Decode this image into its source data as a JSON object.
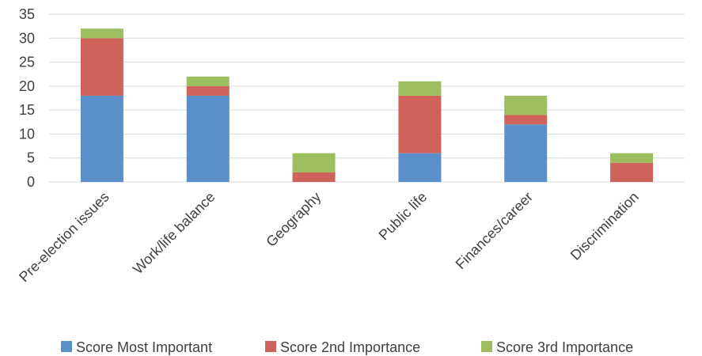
{
  "chart_data": {
    "type": "bar",
    "stacked": true,
    "categories": [
      "Pre-election issues",
      "Work/life balance",
      "Geography",
      "Public life",
      "Finances/career",
      "Discrimination"
    ],
    "series": [
      {
        "name": "Score Most Important",
        "color": "#5b8fca",
        "values": [
          18,
          18,
          0,
          6,
          12,
          0
        ]
      },
      {
        "name": "Score 2nd Importance",
        "color": "#d0625c",
        "values": [
          12,
          2,
          2,
          12,
          2,
          4
        ]
      },
      {
        "name": "Score 3rd Importance",
        "color": "#9dbe5e",
        "values": [
          2,
          2,
          4,
          3,
          4,
          2
        ]
      }
    ],
    "ylim": [
      0,
      35
    ],
    "yticks": [
      0,
      5,
      10,
      15,
      20,
      25,
      30,
      35
    ],
    "grid": true,
    "legend": "bottom"
  }
}
